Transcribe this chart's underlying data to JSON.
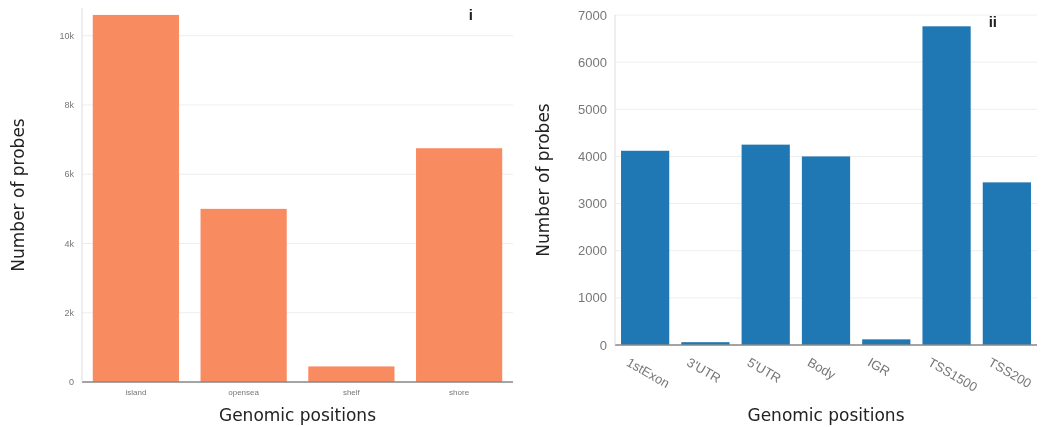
{
  "chart_data": [
    {
      "type": "bar",
      "xlabel": "Genomic positions",
      "ylabel": "Number of probes",
      "annotations": [
        "i"
      ],
      "categories": [
        "island",
        "opensea",
        "shelf",
        "shore"
      ],
      "values": [
        10600,
        5000,
        450,
        6750
      ],
      "color": "#f98b60",
      "ylim": [
        0,
        10800
      ],
      "yticks": [
        {
          "value": 0,
          "label": "0"
        },
        {
          "value": 2000,
          "label": "2k"
        },
        {
          "value": 4000,
          "label": "4k"
        },
        {
          "value": 6000,
          "label": "6k"
        },
        {
          "value": 8000,
          "label": "8k"
        },
        {
          "value": 10000,
          "label": "10k"
        }
      ],
      "grid": "y"
    },
    {
      "type": "bar",
      "xlabel": "Genomic positions",
      "ylabel": "Number of probes",
      "annotations": [
        "ii"
      ],
      "categories": [
        "1stExon",
        "3'UTR",
        "5'UTR",
        "Body",
        "IGR",
        "TSS1500",
        "TSS200"
      ],
      "values": [
        4120,
        60,
        4250,
        4000,
        120,
        6760,
        3450
      ],
      "color": "#1f77b4",
      "ylim": [
        0,
        7000
      ],
      "yticks": [
        0,
        1000,
        2000,
        3000,
        4000,
        5000,
        6000,
        7000
      ],
      "grid": "y"
    }
  ]
}
